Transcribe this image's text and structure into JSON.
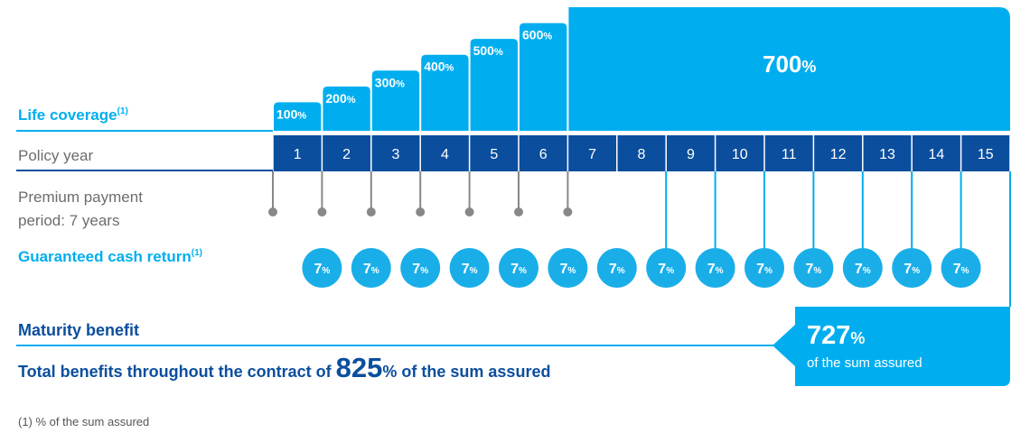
{
  "labels": {
    "life_coverage": "Life coverage",
    "policy_year": "Policy year",
    "premium_period": [
      "Premium payment",
      "period: 7 years"
    ],
    "cash_return": "Guaranteed cash return",
    "maturity": "Maturity benefit",
    "note_ref": "(1)"
  },
  "coverage": {
    "values": [
      100,
      200,
      300,
      400,
      500,
      600,
      700
    ],
    "unit": "%"
  },
  "policy_years": [
    1,
    2,
    3,
    4,
    5,
    6,
    7,
    8,
    9,
    10,
    11,
    12,
    13,
    14,
    15
  ],
  "cash_return": {
    "values": [
      7,
      7,
      7,
      7,
      7,
      7,
      7,
      7,
      7,
      7,
      7,
      7,
      7,
      7
    ],
    "unit": "%"
  },
  "maturity_benefit": {
    "value": 727,
    "unit": "%",
    "caption": "of the sum assured"
  },
  "total": {
    "prefix": "Total benefits throughout the contract of ",
    "value": 825,
    "unit": "%",
    "suffix": " of the sum assured"
  },
  "footnote": "(1) % of the sum assured"
}
